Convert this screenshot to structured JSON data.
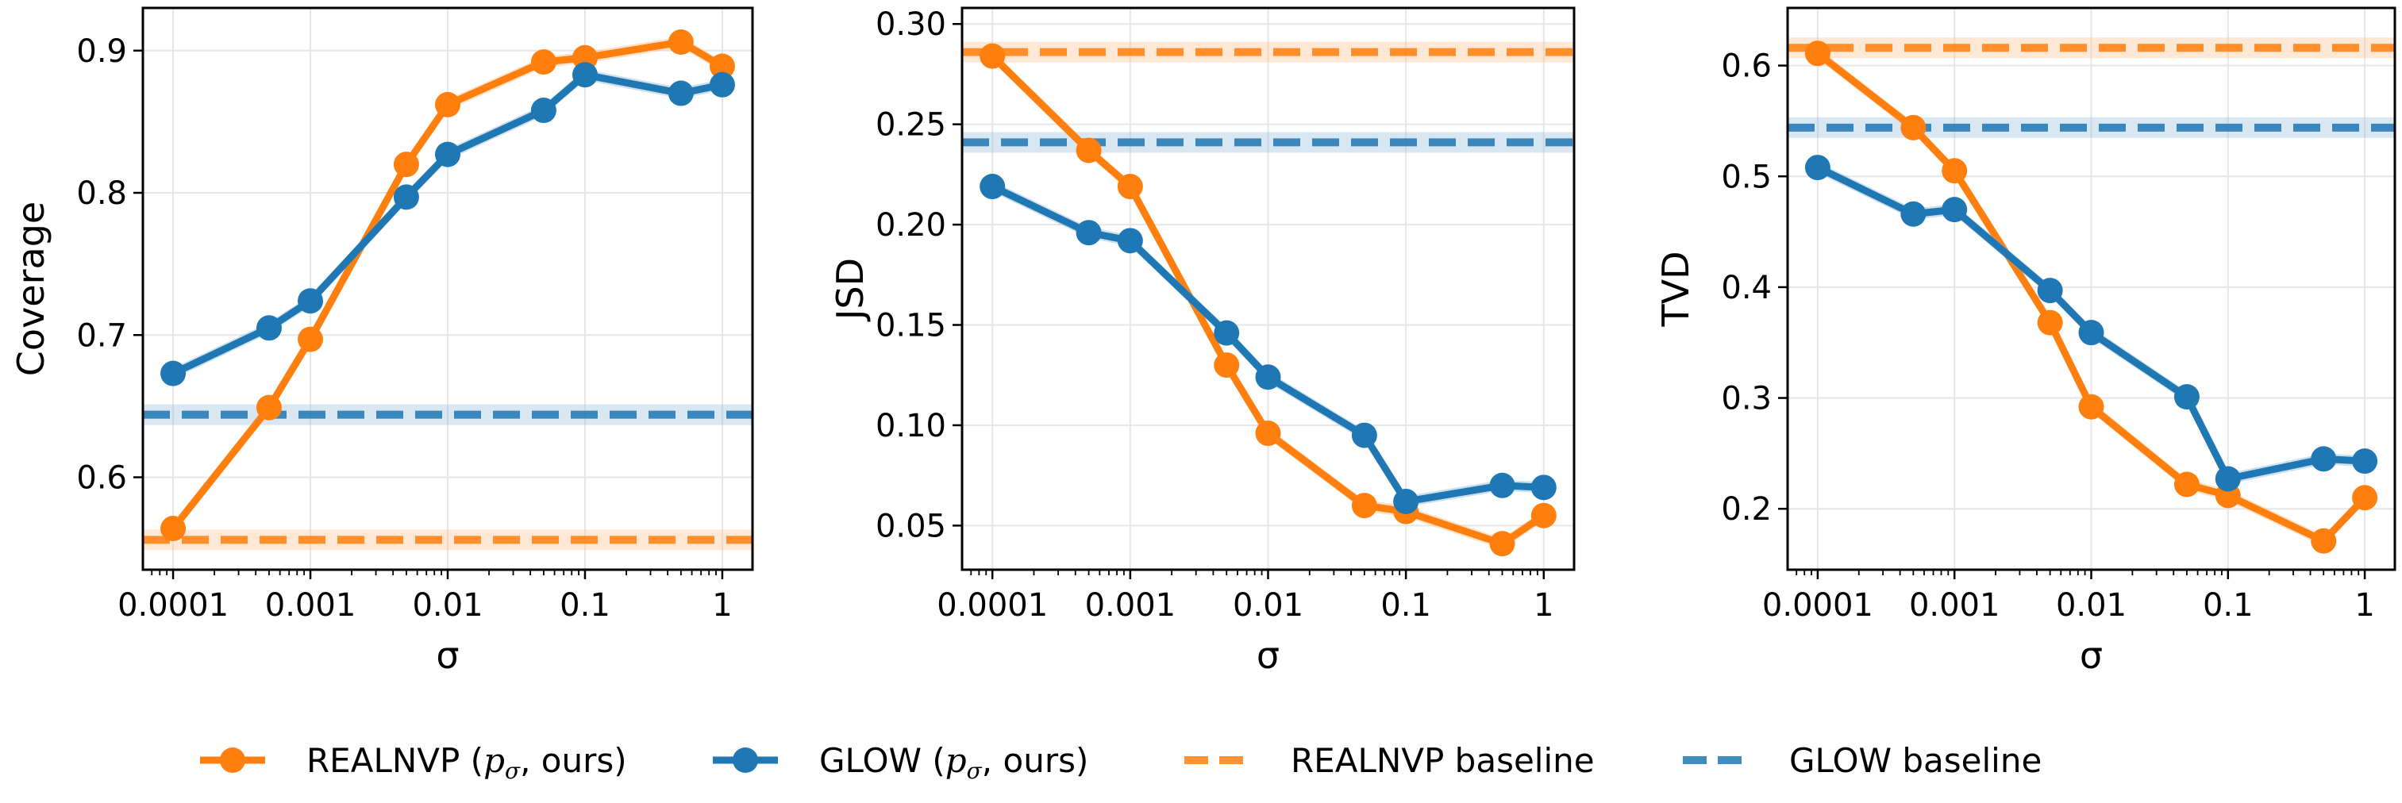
{
  "colors": {
    "realnvp": "#ff7f0e",
    "glow": "#1f77b4",
    "realnvp_band": "#ffbe86",
    "glow_band": "#8fbbd9",
    "grid": "#e6e6e6"
  },
  "chart_data": [
    {
      "type": "line",
      "xscale": "log",
      "x": [
        0.0001,
        0.0005,
        0.001,
        0.005,
        0.01,
        0.05,
        0.1,
        0.5,
        1
      ],
      "xticks": [
        0.0001,
        0.001,
        0.01,
        0.1,
        1
      ],
      "xtick_labels": [
        "0.0001",
        "0.001",
        "0.01",
        "0.1",
        "1"
      ],
      "xlabel": "σ",
      "ylabel": "Coverage",
      "ylim": [
        0.535,
        0.93
      ],
      "yticks": [
        0.6,
        0.7,
        0.8,
        0.9
      ],
      "ytick_labels": [
        "0.6",
        "0.7",
        "0.8",
        "0.9"
      ],
      "series": [
        {
          "name": "REALNVP (p_σ, ours)",
          "values": [
            0.564,
            0.649,
            0.697,
            0.82,
            0.862,
            0.892,
            0.895,
            0.906,
            0.889
          ]
        },
        {
          "name": "GLOW (p_σ, ours)",
          "values": [
            0.673,
            0.705,
            0.724,
            0.797,
            0.827,
            0.858,
            0.883,
            0.87,
            0.876
          ]
        }
      ],
      "baselines": [
        {
          "name": "REALNVP baseline",
          "value": 0.556
        },
        {
          "name": "GLOW baseline",
          "value": 0.644
        }
      ]
    },
    {
      "type": "line",
      "xscale": "log",
      "x": [
        0.0001,
        0.0005,
        0.001,
        0.005,
        0.01,
        0.05,
        0.1,
        0.5,
        1
      ],
      "xticks": [
        0.0001,
        0.001,
        0.01,
        0.1,
        1
      ],
      "xtick_labels": [
        "0.0001",
        "0.001",
        "0.01",
        "0.1",
        "1"
      ],
      "xlabel": "σ",
      "ylabel": "JSD",
      "ylim": [
        0.028,
        0.308
      ],
      "yticks": [
        0.05,
        0.1,
        0.15,
        0.2,
        0.25,
        0.3
      ],
      "ytick_labels": [
        "0.05",
        "0.10",
        "0.15",
        "0.20",
        "0.25",
        "0.30"
      ],
      "series": [
        {
          "name": "REALNVP (p_σ, ours)",
          "values": [
            0.284,
            0.237,
            0.219,
            0.13,
            0.096,
            0.06,
            0.057,
            0.041,
            0.055
          ]
        },
        {
          "name": "GLOW (p_σ, ours)",
          "values": [
            0.219,
            0.196,
            0.192,
            0.146,
            0.124,
            0.095,
            0.062,
            0.07,
            0.069
          ]
        }
      ],
      "baselines": [
        {
          "name": "REALNVP baseline",
          "value": 0.286
        },
        {
          "name": "GLOW baseline",
          "value": 0.241
        }
      ]
    },
    {
      "type": "line",
      "xscale": "log",
      "x": [
        0.0001,
        0.0005,
        0.001,
        0.005,
        0.01,
        0.05,
        0.1,
        0.5,
        1
      ],
      "xticks": [
        0.0001,
        0.001,
        0.01,
        0.1,
        1
      ],
      "xtick_labels": [
        "0.0001",
        "0.001",
        "0.01",
        "0.1",
        "1"
      ],
      "xlabel": "σ",
      "ylabel": "TVD",
      "ylim": [
        0.145,
        0.652
      ],
      "yticks": [
        0.2,
        0.3,
        0.4,
        0.5,
        0.6
      ],
      "ytick_labels": [
        "0.2",
        "0.3",
        "0.4",
        "0.5",
        "0.6"
      ],
      "series": [
        {
          "name": "REALNVP (p_σ, ours)",
          "values": [
            0.611,
            0.544,
            0.505,
            0.368,
            0.292,
            0.222,
            0.212,
            0.171,
            0.21
          ]
        },
        {
          "name": "GLOW (p_σ, ours)",
          "values": [
            0.508,
            0.466,
            0.47,
            0.397,
            0.359,
            0.301,
            0.227,
            0.245,
            0.243
          ]
        }
      ],
      "baselines": [
        {
          "name": "REALNVP baseline",
          "value": 0.616
        },
        {
          "name": "GLOW baseline",
          "value": 0.544
        }
      ]
    }
  ],
  "legend": {
    "items": [
      {
        "key": "realnvp",
        "style": "solid-marker",
        "label_prefix": "REALNVP (",
        "label_math": "p",
        "label_math_sub": "σ",
        "label_suffix": ", ours)"
      },
      {
        "key": "glow",
        "style": "solid-marker",
        "label_prefix": "GLOW (",
        "label_math": "p",
        "label_math_sub": "σ",
        "label_suffix": ", ours)"
      },
      {
        "key": "realnvp",
        "style": "dashed",
        "label_prefix": "REALNVP baseline"
      },
      {
        "key": "glow",
        "style": "dashed",
        "label_prefix": "GLOW baseline"
      }
    ]
  }
}
